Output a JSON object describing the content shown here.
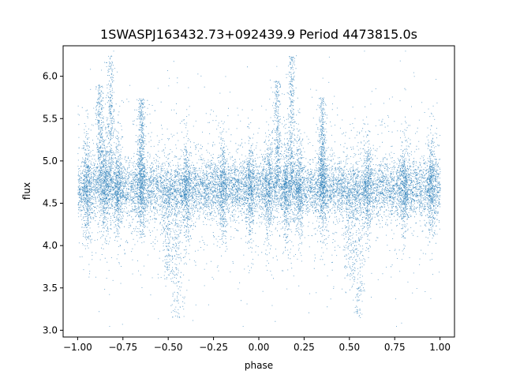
{
  "chart_data": {
    "type": "scatter",
    "title": "1SWASPJ163432.73+092439.9 Period 4473815.0s",
    "xlabel": "phase",
    "ylabel": "flux",
    "xlim": [
      -1.08,
      1.08
    ],
    "ylim": [
      2.92,
      6.36
    ],
    "x_ticks": [
      -1.0,
      -0.75,
      -0.5,
      -0.25,
      0.0,
      0.25,
      0.5,
      0.75,
      1.0
    ],
    "x_tick_labels": [
      "−1.00",
      "−0.75",
      "−0.50",
      "−0.25",
      "0.00",
      "0.25",
      "0.50",
      "0.75",
      "1.00"
    ],
    "y_ticks": [
      3.0,
      3.5,
      4.0,
      4.5,
      5.0,
      5.5,
      6.0
    ],
    "y_tick_labels": [
      "3.0",
      "3.5",
      "4.0",
      "4.5",
      "5.0",
      "5.5",
      "6.0"
    ],
    "grid": false,
    "legend": "none",
    "marker_color": "#1f77b4",
    "phase_range": [
      -1.0,
      1.0
    ],
    "baseline_flux": 4.68,
    "core_band": [
      4.3,
      5.05
    ],
    "scatter_range": [
      3.05,
      6.3
    ],
    "dense_columns": [
      -0.95,
      -0.85,
      -0.78,
      -0.65,
      -0.4,
      -0.2,
      -0.05,
      0.05,
      0.15,
      0.22,
      0.35,
      0.6,
      0.8,
      0.95
    ],
    "high_flux_features": [
      {
        "phase": -0.82,
        "flux_max": 6.25
      },
      {
        "phase": -0.88,
        "flux_max": 5.9
      },
      {
        "phase": -0.65,
        "flux_max": 5.75
      },
      {
        "phase": 0.18,
        "flux_max": 6.25
      },
      {
        "phase": 0.1,
        "flux_max": 5.95
      },
      {
        "phase": 0.35,
        "flux_max": 5.75
      }
    ],
    "low_flux_features": [
      {
        "phase": -0.5,
        "flux_min": 3.6
      },
      {
        "phase": -0.45,
        "flux_min": 3.15
      },
      {
        "phase": 0.5,
        "flux_min": 3.6
      },
      {
        "phase": 0.55,
        "flux_min": 3.15
      }
    ]
  }
}
